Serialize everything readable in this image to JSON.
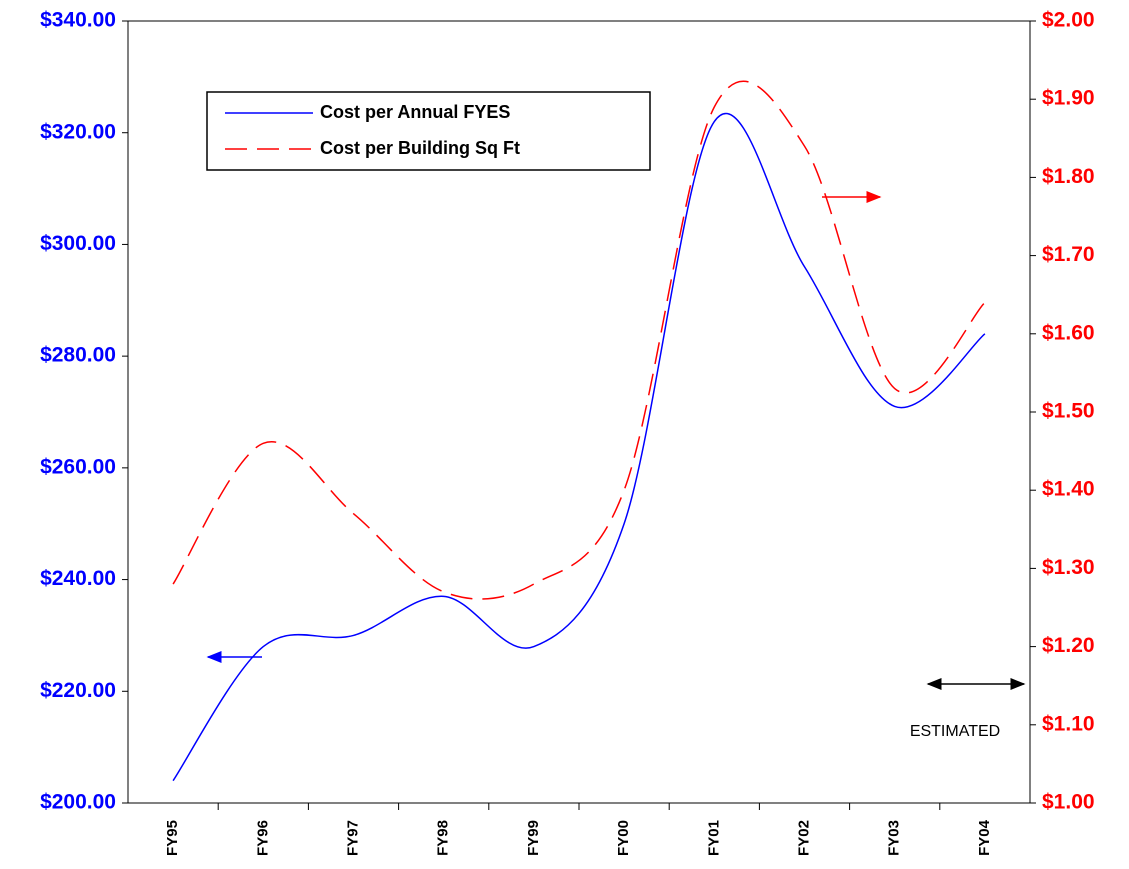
{
  "chart_data": {
    "type": "line",
    "categories": [
      "FY95",
      "FY96",
      "FY97",
      "FY98",
      "FY99",
      "FY00",
      "FY01",
      "FY02",
      "FY03",
      "FY04"
    ],
    "series": [
      {
        "name": "Cost per Annual FYES",
        "color": "#0000ff",
        "values": [
          204,
          228,
          230,
          237,
          228,
          250,
          322,
          296,
          271,
          284
        ]
      },
      {
        "name": "Cost per Building Sq Ft",
        "color": "#ff0000",
        "axis": "y2",
        "values": [
          1.28,
          1.46,
          1.37,
          1.27,
          1.28,
          1.4,
          1.89,
          1.84,
          1.53,
          1.64
        ]
      }
    ],
    "ylim": [
      200,
      340
    ],
    "yticks": [
      {
        "value": 200,
        "label": "$200.00"
      },
      {
        "value": 220,
        "label": "$220.00"
      },
      {
        "value": 240,
        "label": "$240.00"
      },
      {
        "value": 260,
        "label": "$260.00"
      },
      {
        "value": 280,
        "label": "$280.00"
      },
      {
        "value": 300,
        "label": "$300.00"
      },
      {
        "value": 320,
        "label": "$320.00"
      },
      {
        "value": 340,
        "label": "$340.00"
      }
    ],
    "y2lim": [
      1.0,
      2.0
    ],
    "y2ticks": [
      {
        "value": 1.0,
        "label": "$1.00"
      },
      {
        "value": 1.1,
        "label": "$1.10"
      },
      {
        "value": 1.2,
        "label": "$1.20"
      },
      {
        "value": 1.3,
        "label": "$1.30"
      },
      {
        "value": 1.4,
        "label": "$1.40"
      },
      {
        "value": 1.5,
        "label": "$1.50"
      },
      {
        "value": 1.6,
        "label": "$1.60"
      },
      {
        "value": 1.7,
        "label": "$1.70"
      },
      {
        "value": 1.8,
        "label": "$1.80"
      },
      {
        "value": 1.9,
        "label": "$1.90"
      },
      {
        "value": 2.0,
        "label": "$2.00"
      }
    ],
    "annotation": "ESTIMATED"
  }
}
